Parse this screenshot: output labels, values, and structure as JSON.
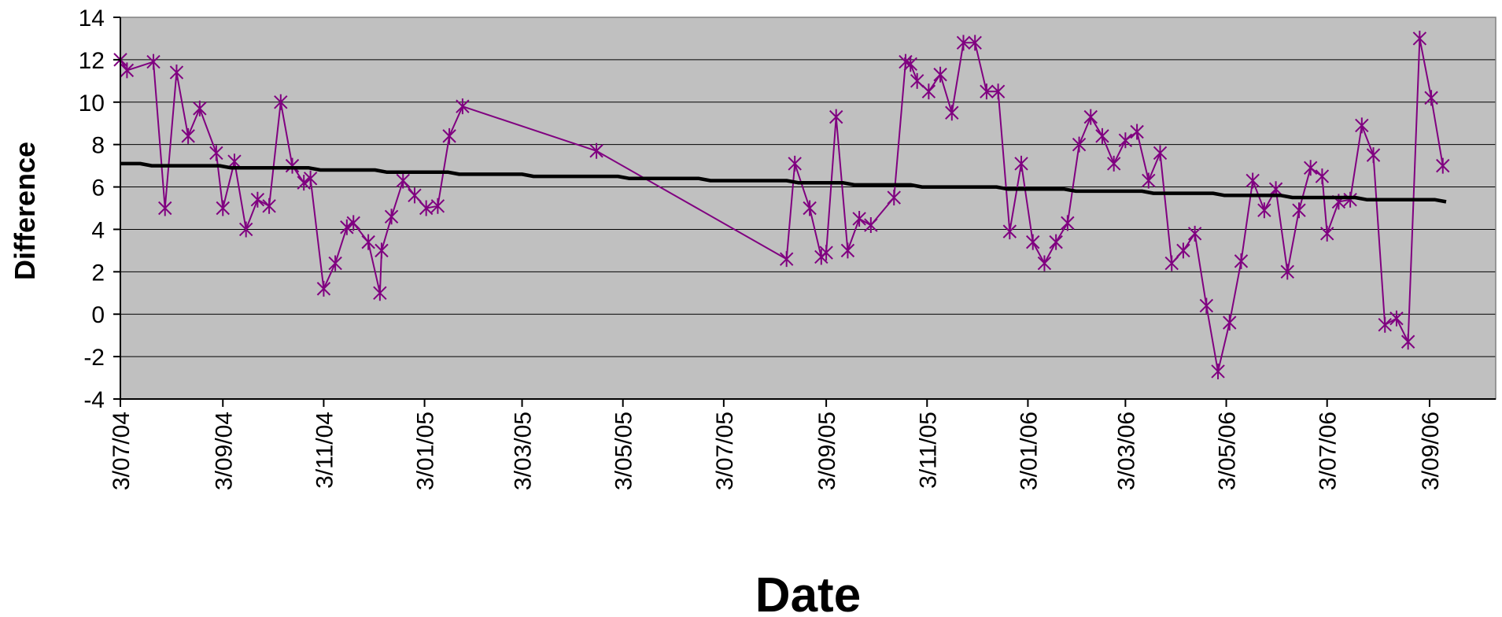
{
  "chart_data": {
    "type": "line",
    "title": "",
    "xlabel": "Date",
    "ylabel": "Difference",
    "ylim": [
      -4,
      14
    ],
    "yticks": [
      14,
      12,
      10,
      8,
      6,
      4,
      2,
      0,
      -2,
      -4
    ],
    "xlim": [
      "2004-07-03",
      "2006-10-13"
    ],
    "xticks": [
      {
        "date": "2004-07-03",
        "label": "3/07/04"
      },
      {
        "date": "2004-09-03",
        "label": "3/09/04"
      },
      {
        "date": "2004-11-03",
        "label": "3/11/04"
      },
      {
        "date": "2005-01-03",
        "label": "3/01/05"
      },
      {
        "date": "2005-03-03",
        "label": "3/03/05"
      },
      {
        "date": "2005-05-03",
        "label": "3/05/05"
      },
      {
        "date": "2005-07-03",
        "label": "3/07/05"
      },
      {
        "date": "2005-09-03",
        "label": "3/09/05"
      },
      {
        "date": "2005-11-03",
        "label": "3/11/05"
      },
      {
        "date": "2006-01-03",
        "label": "3/01/06"
      },
      {
        "date": "2006-03-03",
        "label": "3/03/06"
      },
      {
        "date": "2006-05-03",
        "label": "3/05/06"
      },
      {
        "date": "2006-07-03",
        "label": "3/07/06"
      },
      {
        "date": "2006-09-03",
        "label": "3/09/06"
      }
    ],
    "grid": true,
    "background": "#c0c0c0",
    "series": [
      {
        "color": "#800080",
        "marker": "asterisk",
        "points": [
          [
            "2004-07-03",
            12.0
          ],
          [
            "2004-07-07",
            11.5
          ],
          [
            "2004-07-23",
            11.9
          ],
          [
            "2004-07-30",
            5.0
          ],
          [
            "2004-08-06",
            11.4
          ],
          [
            "2004-08-13",
            8.4
          ],
          [
            "2004-08-20",
            9.7
          ],
          [
            "2004-08-30",
            7.6
          ],
          [
            "2004-09-03",
            5.0
          ],
          [
            "2004-09-10",
            7.2
          ],
          [
            "2004-09-17",
            4.0
          ],
          [
            "2004-09-24",
            5.4
          ],
          [
            "2004-10-01",
            5.1
          ],
          [
            "2004-10-08",
            10.0
          ],
          [
            "2004-10-15",
            7.0
          ],
          [
            "2004-10-22",
            6.2
          ],
          [
            "2004-10-26",
            6.4
          ],
          [
            "2004-11-03",
            1.2
          ],
          [
            "2004-11-10",
            2.4
          ],
          [
            "2004-11-17",
            4.1
          ],
          [
            "2004-11-21",
            4.3
          ],
          [
            "2004-11-30",
            3.4
          ],
          [
            "2004-12-07",
            1.0
          ],
          [
            "2004-12-08",
            3.0
          ],
          [
            "2004-12-14",
            4.6
          ],
          [
            "2004-12-21",
            6.3
          ],
          [
            "2004-12-28",
            5.6
          ],
          [
            "2005-01-04",
            5.0
          ],
          [
            "2005-01-11",
            5.1
          ],
          [
            "2005-01-18",
            8.4
          ],
          [
            "2005-01-26",
            9.8
          ],
          [
            "2005-04-17",
            7.7
          ],
          [
            "2005-08-10",
            2.6
          ],
          [
            "2005-08-15",
            7.1
          ],
          [
            "2005-08-24",
            5.0
          ],
          [
            "2005-08-31",
            2.7
          ],
          [
            "2005-09-03",
            2.9
          ],
          [
            "2005-09-09",
            9.3
          ],
          [
            "2005-09-16",
            3.0
          ],
          [
            "2005-09-23",
            4.5
          ],
          [
            "2005-09-30",
            4.2
          ],
          [
            "2005-10-14",
            5.5
          ],
          [
            "2005-10-21",
            11.9
          ],
          [
            "2005-10-24",
            11.8
          ],
          [
            "2005-10-28",
            11.0
          ],
          [
            "2005-11-04",
            10.5
          ],
          [
            "2005-11-11",
            11.3
          ],
          [
            "2005-11-18",
            9.5
          ],
          [
            "2005-11-25",
            12.8
          ],
          [
            "2005-12-02",
            12.8
          ],
          [
            "2005-12-09",
            10.5
          ],
          [
            "2005-12-16",
            10.5
          ],
          [
            "2005-12-23",
            3.9
          ],
          [
            "2005-12-30",
            7.1
          ],
          [
            "2006-01-06",
            3.4
          ],
          [
            "2006-01-13",
            2.4
          ],
          [
            "2006-01-20",
            3.4
          ],
          [
            "2006-01-27",
            4.3
          ],
          [
            "2006-02-03",
            8.0
          ],
          [
            "2006-02-10",
            9.3
          ],
          [
            "2006-02-17",
            8.4
          ],
          [
            "2006-02-24",
            7.1
          ],
          [
            "2006-03-03",
            8.2
          ],
          [
            "2006-03-10",
            8.6
          ],
          [
            "2006-03-17",
            6.3
          ],
          [
            "2006-03-24",
            7.6
          ],
          [
            "2006-03-31",
            2.4
          ],
          [
            "2006-04-07",
            3.0
          ],
          [
            "2006-04-14",
            3.8
          ],
          [
            "2006-04-21",
            0.4
          ],
          [
            "2006-04-28",
            -2.7
          ],
          [
            "2006-05-05",
            -0.4
          ],
          [
            "2006-05-12",
            2.5
          ],
          [
            "2006-05-19",
            6.3
          ],
          [
            "2006-05-26",
            4.9
          ],
          [
            "2006-06-02",
            5.9
          ],
          [
            "2006-06-09",
            2.0
          ],
          [
            "2006-06-16",
            4.9
          ],
          [
            "2006-06-23",
            6.9
          ],
          [
            "2006-06-30",
            6.5
          ],
          [
            "2006-07-03",
            3.8
          ],
          [
            "2006-07-10",
            5.3
          ],
          [
            "2006-07-17",
            5.4
          ],
          [
            "2006-07-24",
            8.9
          ],
          [
            "2006-07-31",
            7.5
          ],
          [
            "2006-08-07",
            -0.5
          ],
          [
            "2006-08-14",
            -0.2
          ],
          [
            "2006-08-21",
            -1.3
          ],
          [
            "2006-08-28",
            13.0
          ],
          [
            "2006-09-04",
            10.2
          ],
          [
            "2006-09-11",
            7.0
          ]
        ]
      },
      {
        "color": "#000000",
        "marker": "none",
        "points": [
          [
            "2004-07-03",
            7.1
          ],
          [
            "2004-07-15",
            7.1
          ],
          [
            "2004-07-22",
            7.0
          ],
          [
            "2004-09-01",
            7.0
          ],
          [
            "2004-09-08",
            6.9
          ],
          [
            "2004-10-25",
            6.9
          ],
          [
            "2004-11-01",
            6.8
          ],
          [
            "2004-12-04",
            6.8
          ],
          [
            "2004-12-11",
            6.7
          ],
          [
            "2005-01-17",
            6.7
          ],
          [
            "2005-01-24",
            6.6
          ],
          [
            "2005-03-03",
            6.6
          ],
          [
            "2005-03-10",
            6.5
          ],
          [
            "2005-04-30",
            6.5
          ],
          [
            "2005-05-07",
            6.4
          ],
          [
            "2005-06-18",
            6.4
          ],
          [
            "2005-06-25",
            6.3
          ],
          [
            "2005-08-10",
            6.3
          ],
          [
            "2005-08-17",
            6.2
          ],
          [
            "2005-09-13",
            6.2
          ],
          [
            "2005-09-20",
            6.1
          ],
          [
            "2005-10-24",
            6.1
          ],
          [
            "2005-10-31",
            6.0
          ],
          [
            "2005-12-15",
            6.0
          ],
          [
            "2005-12-22",
            5.9
          ],
          [
            "2006-01-25",
            5.9
          ],
          [
            "2006-02-01",
            5.8
          ],
          [
            "2006-03-13",
            5.8
          ],
          [
            "2006-03-20",
            5.7
          ],
          [
            "2006-04-25",
            5.7
          ],
          [
            "2006-05-02",
            5.6
          ],
          [
            "2006-06-05",
            5.6
          ],
          [
            "2006-06-12",
            5.5
          ],
          [
            "2006-07-20",
            5.5
          ],
          [
            "2006-07-27",
            5.4
          ],
          [
            "2006-09-06",
            5.4
          ],
          [
            "2006-09-13",
            5.3
          ]
        ]
      }
    ]
  }
}
